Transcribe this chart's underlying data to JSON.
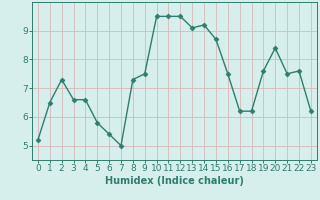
{
  "x": [
    0,
    1,
    2,
    3,
    4,
    5,
    6,
    7,
    8,
    9,
    10,
    11,
    12,
    13,
    14,
    15,
    16,
    17,
    18,
    19,
    20,
    21,
    22,
    23
  ],
  "y": [
    5.2,
    6.5,
    7.3,
    6.6,
    6.6,
    5.8,
    5.4,
    5.0,
    7.3,
    7.5,
    9.5,
    9.5,
    9.5,
    9.1,
    9.2,
    8.7,
    7.5,
    6.2,
    6.2,
    7.6,
    8.4,
    7.5,
    7.6,
    6.2
  ],
  "line_color": "#2e7d6e",
  "marker": "D",
  "marker_size": 2.5,
  "bg_color": "#d6efec",
  "grid_color": "#d8b8b8",
  "xlabel": "Humidex (Indice chaleur)",
  "xlim": [
    -0.5,
    23.5
  ],
  "ylim": [
    4.5,
    10.0
  ],
  "yticks": [
    5,
    6,
    7,
    8,
    9
  ],
  "xticks": [
    0,
    1,
    2,
    3,
    4,
    5,
    6,
    7,
    8,
    9,
    10,
    11,
    12,
    13,
    14,
    15,
    16,
    17,
    18,
    19,
    20,
    21,
    22,
    23
  ],
  "xlabel_fontsize": 7,
  "tick_fontsize": 6.5,
  "line_width": 1.0
}
